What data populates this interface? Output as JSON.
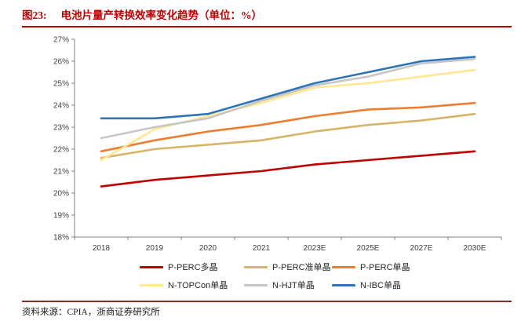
{
  "header": {
    "figure_label": "图23:",
    "title": "电池片量产转换效率变化趋势（单位：%）"
  },
  "footer": {
    "source": "资料来源：CPIA，浙商证券研究所"
  },
  "colors": {
    "accent_red": "#C00000",
    "footer_rule": "#8E2B23",
    "axis": "#808080",
    "tick_text": "#404040"
  },
  "chart_data": {
    "type": "line",
    "title": "电池片量产转换效率变化趋势",
    "unit": "%",
    "categories": [
      "2018",
      "2019",
      "2020",
      "2021",
      "2023E",
      "2025E",
      "2027E",
      "2030E"
    ],
    "ylim": [
      18,
      27
    ],
    "ytick_step": 1,
    "ytick_suffix": "%",
    "grid": false,
    "legend_position": "bottom",
    "series": [
      {
        "name": "P-PERC多晶",
        "color": "#C00000",
        "values": [
          20.3,
          20.6,
          20.8,
          21.0,
          21.3,
          21.5,
          21.7,
          21.9
        ]
      },
      {
        "name": "P-PERC准单晶",
        "color": "#D6B56B",
        "values": [
          21.6,
          22.0,
          22.2,
          22.4,
          22.8,
          23.1,
          23.3,
          23.6
        ]
      },
      {
        "name": "P-PERC单晶",
        "color": "#ED7D31",
        "values": [
          21.9,
          22.4,
          22.8,
          23.1,
          23.5,
          23.8,
          23.9,
          24.1
        ]
      },
      {
        "name": "N-TOPCon单晶",
        "color": "#FFE894",
        "values": [
          21.5,
          22.9,
          23.5,
          24.1,
          24.8,
          25.0,
          25.3,
          25.6
        ]
      },
      {
        "name": "N-HJT单晶",
        "color": "#C6C6C6",
        "values": [
          22.5,
          23.0,
          23.4,
          24.2,
          24.9,
          25.3,
          25.9,
          26.1
        ]
      },
      {
        "name": "N-IBC单晶",
        "color": "#2E75B6",
        "values": [
          23.4,
          23.4,
          23.6,
          24.3,
          25.0,
          25.5,
          26.0,
          26.2
        ]
      }
    ]
  }
}
